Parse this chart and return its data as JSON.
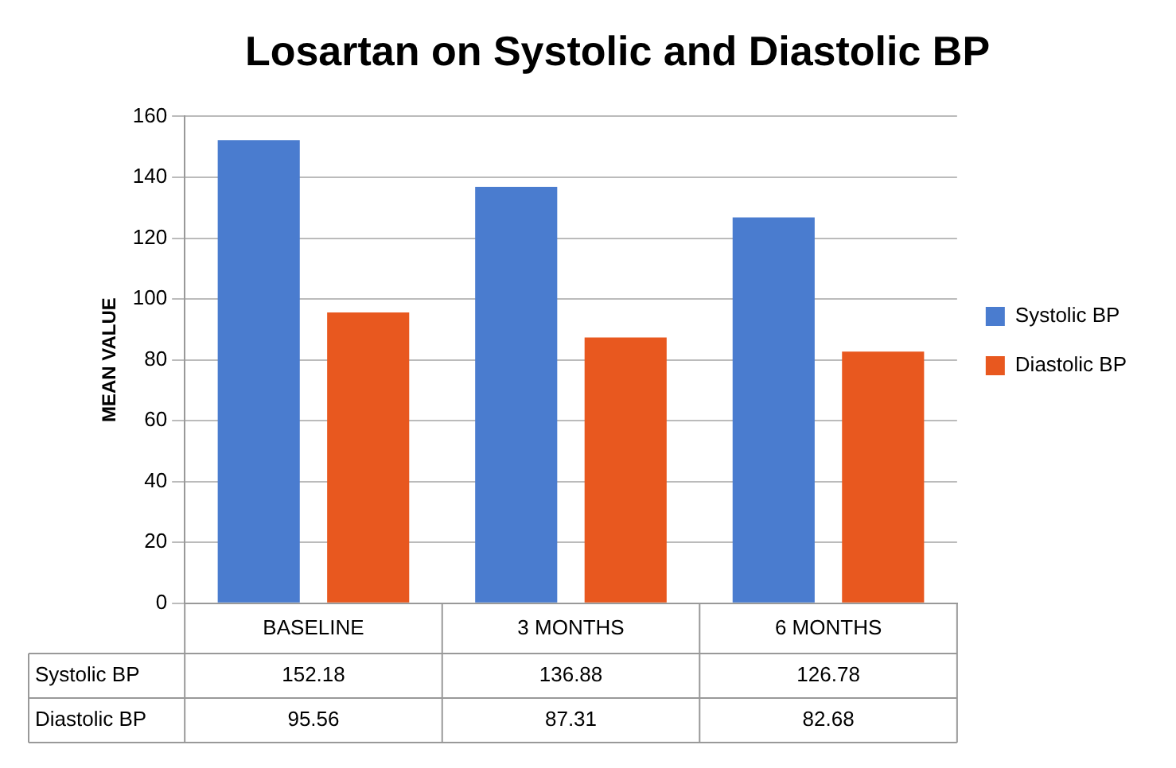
{
  "chart_data": {
    "type": "bar",
    "title": "Losartan on Systolic and Diastolic BP",
    "ylabel": "MEAN VALUE",
    "categories": [
      "BASELINE",
      "3 MONTHS",
      "6 MONTHS"
    ],
    "series": [
      {
        "name": "Systolic BP",
        "color": "#4a7ccf",
        "values": [
          152.18,
          136.88,
          126.78
        ]
      },
      {
        "name": "Diastolic BP",
        "color": "#e8581f",
        "values": [
          95.56,
          87.31,
          82.68
        ]
      }
    ],
    "ylim": [
      0,
      160
    ],
    "yticks": [
      0,
      20,
      40,
      60,
      80,
      100,
      120,
      140,
      160
    ],
    "grid": "y",
    "legend": "right",
    "data_labels": true
  }
}
